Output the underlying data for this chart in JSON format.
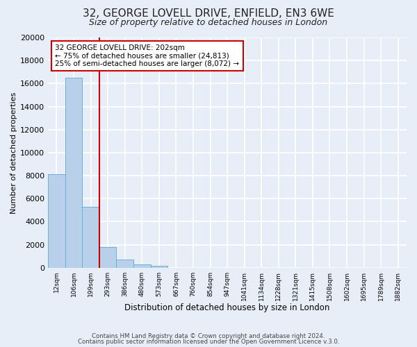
{
  "title": "32, GEORGE LOVELL DRIVE, ENFIELD, EN3 6WE",
  "subtitle": "Size of property relative to detached houses in London",
  "xlabel": "Distribution of detached houses by size in London",
  "ylabel": "Number of detached properties",
  "bar_labels": [
    "12sqm",
    "106sqm",
    "199sqm",
    "293sqm",
    "386sqm",
    "480sqm",
    "573sqm",
    "667sqm",
    "760sqm",
    "854sqm",
    "947sqm",
    "1041sqm",
    "1134sqm",
    "1228sqm",
    "1321sqm",
    "1415sqm",
    "1508sqm",
    "1602sqm",
    "1695sqm",
    "1789sqm",
    "1882sqm"
  ],
  "bar_values": [
    8100,
    16500,
    5300,
    1800,
    700,
    300,
    200,
    0,
    0,
    0,
    0,
    0,
    0,
    0,
    0,
    0,
    0,
    0,
    0,
    0,
    0
  ],
  "bar_color": "#b8d0ea",
  "bar_edge_color": "#6aaed6",
  "vline_x": 2.5,
  "vline_color": "#cc0000",
  "ylim": [
    0,
    20000
  ],
  "yticks": [
    0,
    2000,
    4000,
    6000,
    8000,
    10000,
    12000,
    14000,
    16000,
    18000,
    20000
  ],
  "annotation_title": "32 GEORGE LOVELL DRIVE: 202sqm",
  "annotation_line1": "← 75% of detached houses are smaller (24,813)",
  "annotation_line2": "25% of semi-detached houses are larger (8,072) →",
  "annotation_box_color": "#ffffff",
  "annotation_box_edge": "#cc0000",
  "footer1": "Contains HM Land Registry data © Crown copyright and database right 2024.",
  "footer2": "Contains public sector information licensed under the Open Government Licence v.3.0.",
  "bg_color": "#e8eef8",
  "plot_bg_color": "#e8eef8",
  "grid_color": "#ffffff",
  "title_fontsize": 11,
  "subtitle_fontsize": 9
}
